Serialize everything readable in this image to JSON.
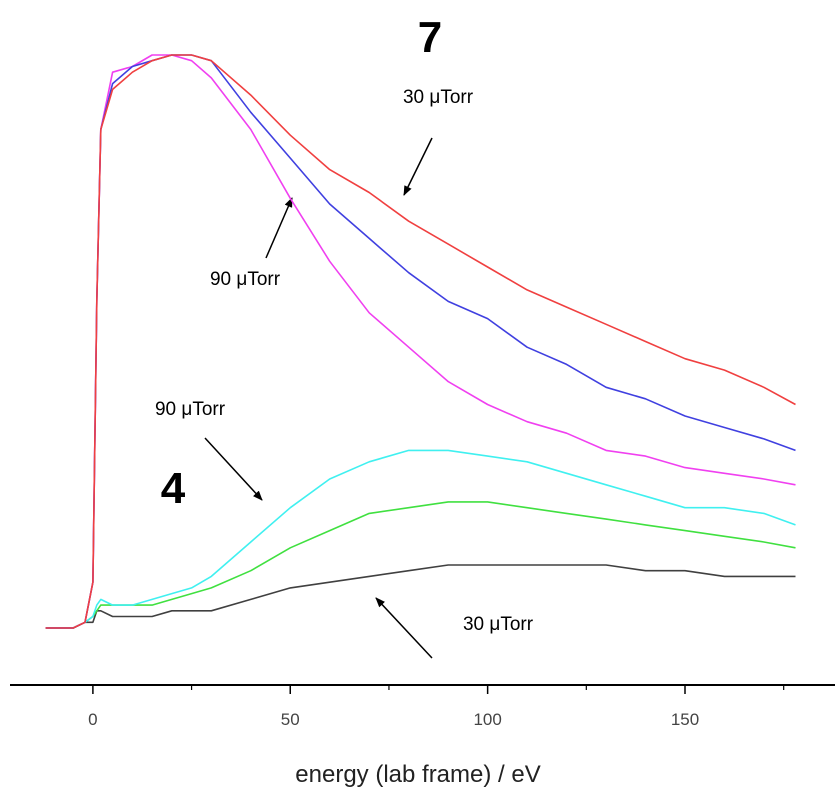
{
  "chart_data": {
    "type": "line",
    "x_label": "energy (lab frame) / eV",
    "x": [
      -12,
      -5,
      -2,
      0,
      1,
      2,
      5,
      10,
      15,
      20,
      25,
      30,
      40,
      50,
      60,
      70,
      80,
      90,
      100,
      110,
      120,
      130,
      140,
      150,
      160,
      170,
      178
    ],
    "xlim": [
      -21,
      188
    ],
    "xticks": [
      0,
      50,
      100,
      150
    ],
    "xminor": [
      25,
      75,
      125,
      175
    ],
    "ylim": [
      0,
      1
    ],
    "series": [
      {
        "color": "#404040",
        "values": [
          0,
          0,
          0.01,
          0.01,
          0.03,
          0.03,
          0.02,
          0.02,
          0.02,
          0.03,
          0.03,
          0.03,
          0.05,
          0.07,
          0.08,
          0.09,
          0.1,
          0.11,
          0.11,
          0.11,
          0.11,
          0.11,
          0.1,
          0.1,
          0.09,
          0.09,
          0.09
        ]
      },
      {
        "color": "#40e040",
        "values": [
          0,
          0,
          0.01,
          0.02,
          0.03,
          0.04,
          0.04,
          0.04,
          0.04,
          0.05,
          0.06,
          0.07,
          0.1,
          0.14,
          0.17,
          0.2,
          0.21,
          0.22,
          0.22,
          0.21,
          0.2,
          0.19,
          0.18,
          0.17,
          0.16,
          0.15,
          0.14
        ]
      },
      {
        "color": "#40f0f0",
        "values": [
          0,
          0,
          0.01,
          0.02,
          0.04,
          0.05,
          0.04,
          0.04,
          0.05,
          0.06,
          0.07,
          0.09,
          0.15,
          0.21,
          0.26,
          0.29,
          0.31,
          0.31,
          0.3,
          0.29,
          0.27,
          0.25,
          0.23,
          0.21,
          0.21,
          0.2,
          0.18
        ]
      },
      {
        "color": "#f040f0",
        "values": [
          0,
          0,
          0.01,
          0.08,
          0.57,
          0.87,
          0.97,
          0.98,
          1.0,
          1.0,
          0.99,
          0.96,
          0.87,
          0.75,
          0.64,
          0.55,
          0.49,
          0.43,
          0.39,
          0.36,
          0.34,
          0.31,
          0.3,
          0.28,
          0.27,
          0.26,
          0.25
        ]
      },
      {
        "color": "#4040e0",
        "values": [
          0,
          0,
          0.01,
          0.08,
          0.57,
          0.87,
          0.95,
          0.98,
          0.99,
          1.0,
          1.0,
          0.99,
          0.9,
          0.82,
          0.74,
          0.68,
          0.62,
          0.57,
          0.54,
          0.49,
          0.46,
          0.42,
          0.4,
          0.37,
          0.35,
          0.33,
          0.31
        ]
      },
      {
        "color": "#f04040",
        "values": [
          0,
          0,
          0.01,
          0.08,
          0.57,
          0.87,
          0.94,
          0.97,
          0.99,
          1.0,
          1.0,
          0.99,
          0.93,
          0.86,
          0.8,
          0.76,
          0.71,
          0.67,
          0.63,
          0.59,
          0.56,
          0.53,
          0.5,
          0.47,
          0.45,
          0.42,
          0.39
        ]
      }
    ],
    "annotations": [
      "7",
      "30 μTorr",
      "90 μTorr",
      "90 μTorr",
      "4",
      "30 μTorr"
    ]
  }
}
